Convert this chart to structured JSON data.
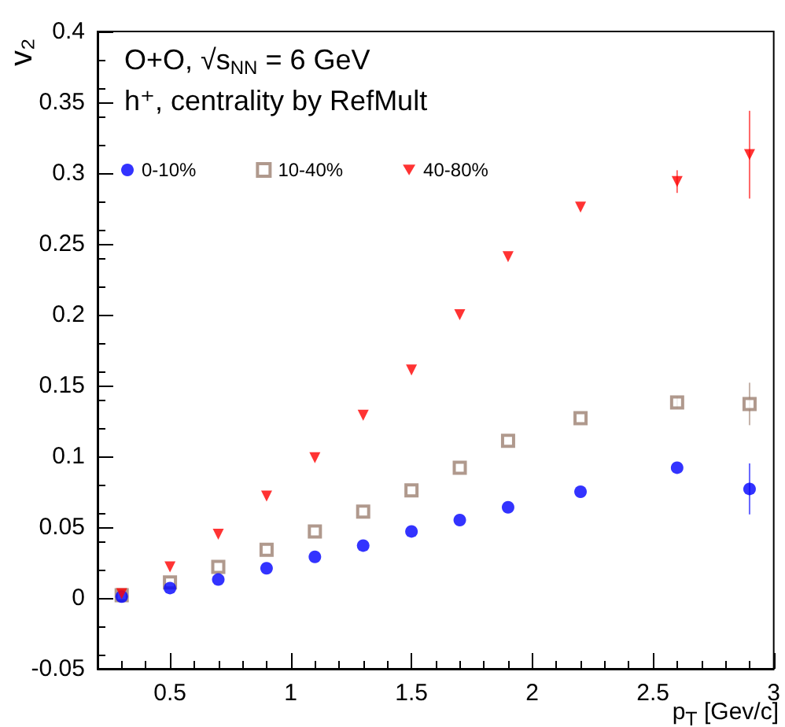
{
  "chart_data": {
    "type": "scatter",
    "title": "O+O, √s$_{NN}$ = 6 GeV",
    "subtitle": "h⁺, centrality by RefMult",
    "xlabel": "p$_{T}$ [Gev/c]",
    "ylabel": "v₂",
    "x": [
      0.3,
      0.5,
      0.7,
      0.9,
      1.1,
      1.3,
      1.5,
      1.7,
      1.9,
      2.2,
      2.6,
      2.9
    ],
    "series": [
      {
        "name": "0-10%",
        "color": "#0000ff",
        "marker": "circle",
        "values": [
          0.001,
          0.007,
          0.013,
          0.021,
          0.029,
          0.037,
          0.047,
          0.055,
          0.064,
          0.075,
          0.092,
          0.077
        ],
        "errors": [
          null,
          null,
          null,
          null,
          null,
          null,
          null,
          null,
          null,
          null,
          null,
          0.018
        ]
      },
      {
        "name": "10-40%",
        "color": "#9c7f70",
        "marker": "square",
        "values": [
          0.002,
          0.011,
          0.022,
          0.034,
          0.047,
          0.061,
          0.076,
          0.092,
          0.111,
          0.127,
          0.138,
          0.137
        ],
        "errors": [
          null,
          null,
          null,
          null,
          null,
          null,
          null,
          null,
          null,
          null,
          0.004,
          0.015
        ]
      },
      {
        "name": "40-80%",
        "color": "#ff0000",
        "marker": "triangle",
        "values": [
          0.003,
          0.022,
          0.045,
          0.072,
          0.099,
          0.129,
          0.161,
          0.2,
          0.241,
          0.276,
          0.294,
          0.313
        ],
        "errors": [
          null,
          null,
          null,
          null,
          null,
          null,
          null,
          null,
          null,
          null,
          0.008,
          0.031
        ]
      }
    ],
    "xlim": [
      0.2,
      3
    ],
    "xticks": [
      0.5,
      1,
      1.5,
      2,
      2.5,
      3
    ],
    "ylim": [
      -0.05,
      0.4
    ],
    "yticks": [
      -0.05,
      0,
      0.05,
      0.1,
      0.15,
      0.2,
      0.25,
      0.3,
      0.35,
      0.4
    ],
    "grid": false,
    "legend": "top left"
  }
}
